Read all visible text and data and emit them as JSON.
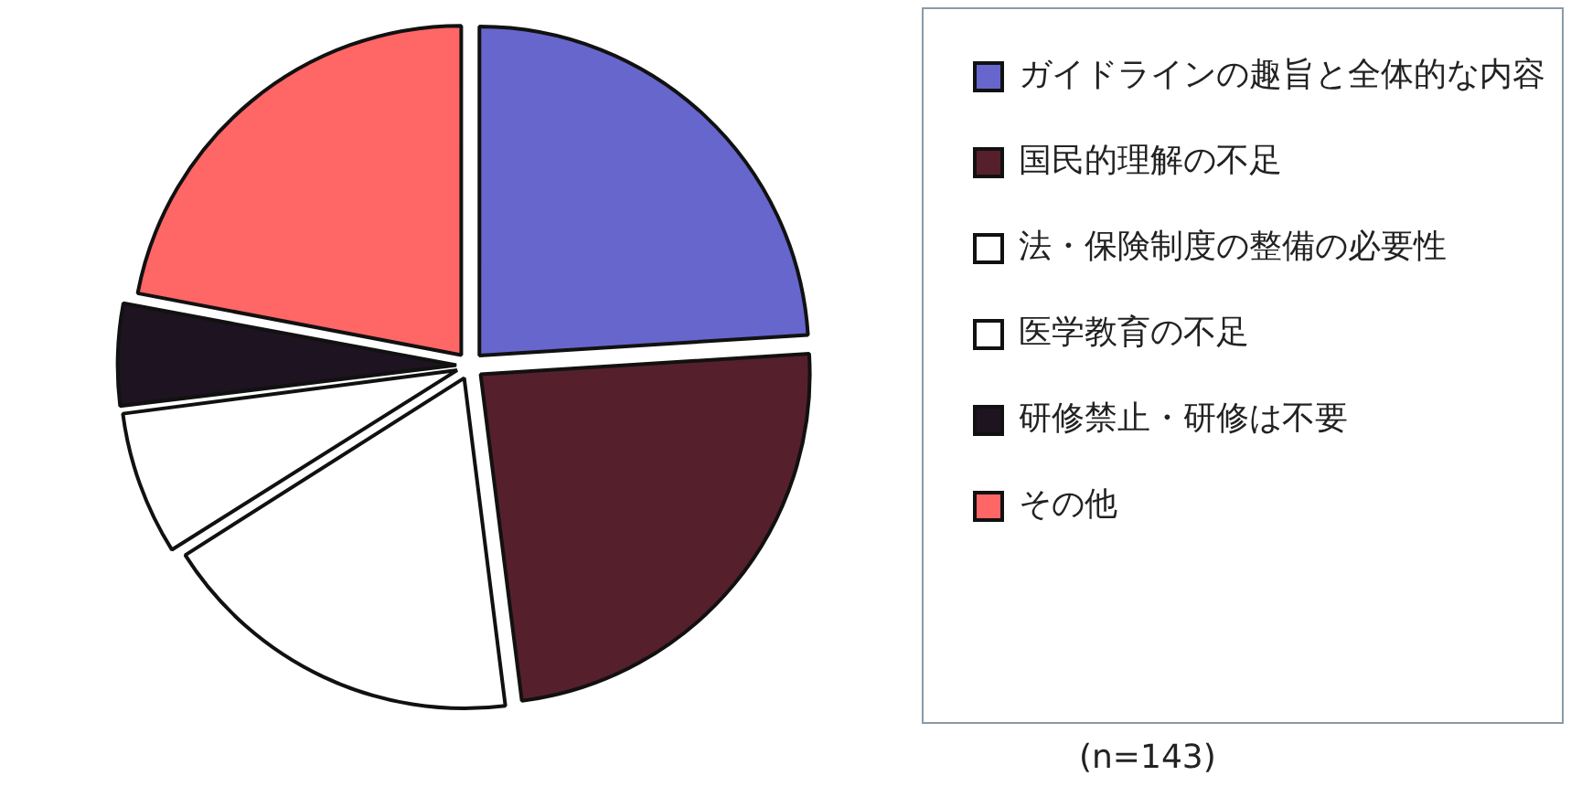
{
  "chart_data": {
    "type": "pie",
    "categories": [
      "ガイドラインの趣旨と全体的な内容",
      "国民的理解の不足",
      "法・保険制度の整備の必要性",
      "医学教育の不足",
      "研修禁止・研修は不要",
      "その他"
    ],
    "values": [
      24,
      24,
      18,
      7,
      5,
      22
    ],
    "colors": [
      "#6666cc",
      "#561f2c",
      "#ffffff",
      "#ffffff",
      "#1e1320",
      "#ff6666"
    ],
    "legend": "right",
    "annotations": [
      "(n=143)"
    ]
  }
}
